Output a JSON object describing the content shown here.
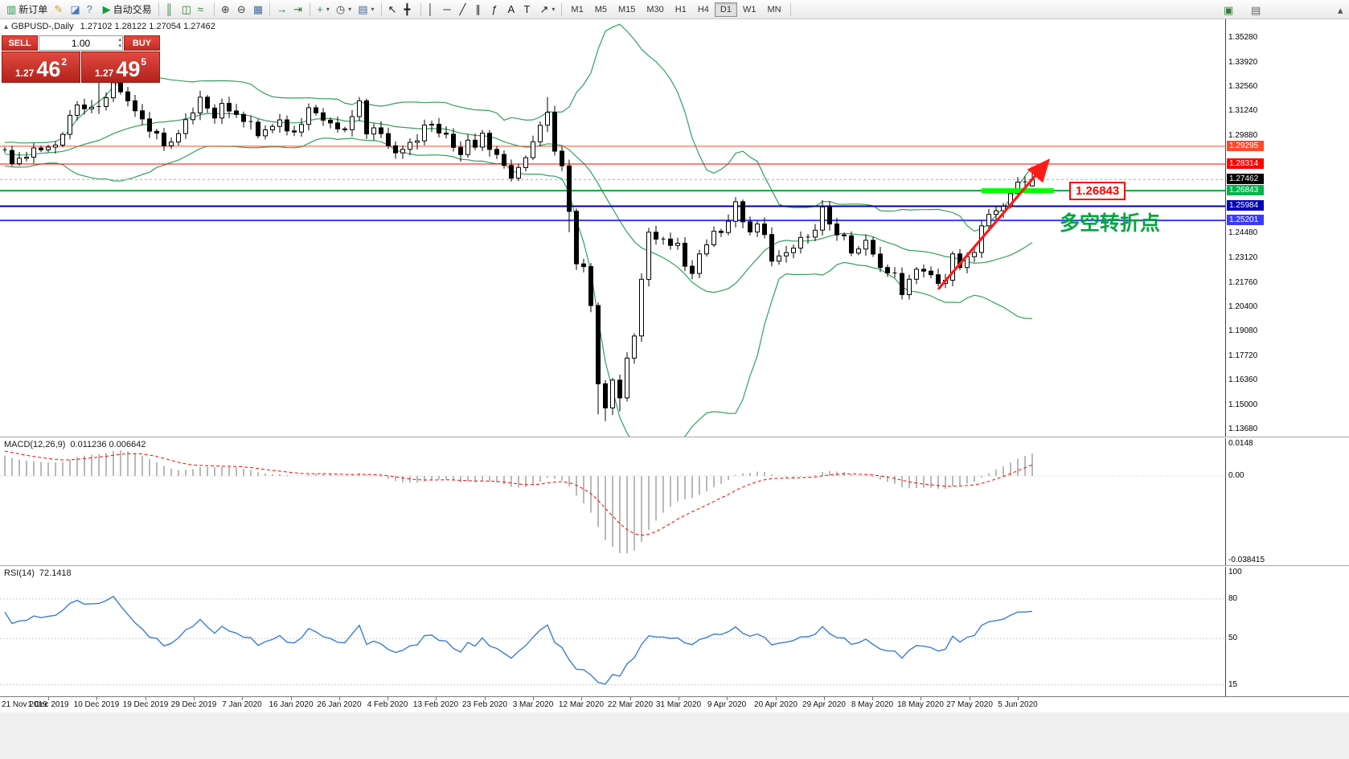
{
  "toolbar": {
    "groups": [
      {
        "name": "standard",
        "items": [
          {
            "name": "new-order-button",
            "icon": "new-order-icon",
            "glyph": "▥",
            "color": "#1d9f4e",
            "label": "新订单"
          },
          {
            "name": "metaeditor-button",
            "icon": "metaeditor-icon",
            "glyph": "✎",
            "color": "#d79b17"
          },
          {
            "name": "profiles-button",
            "icon": "profiles-icon",
            "glyph": "◪",
            "color": "#4a7ab8"
          },
          {
            "name": "help-button",
            "icon": "help-icon",
            "glyph": "?",
            "color": "#4a7ab8"
          },
          {
            "name": "autotrading-button",
            "icon": "autotrading-icon",
            "glyph": "▶",
            "color": "#169c3a",
            "label": "自动交易"
          }
        ]
      },
      {
        "name": "chart-modes",
        "items": [
          {
            "name": "bar-chart-button",
            "icon": "bar-chart-icon",
            "glyph": "║",
            "color": "#357a38"
          },
          {
            "name": "candlestick-chart-button",
            "icon": "candlestick-chart-icon",
            "glyph": "◫",
            "color": "#357a38"
          },
          {
            "name": "line-chart-button",
            "icon": "line-chart-icon",
            "glyph": "≈",
            "color": "#357a38"
          }
        ]
      },
      {
        "name": "zoom",
        "items": [
          {
            "name": "zoom-in-button",
            "icon": "zoom-in-icon",
            "glyph": "⊕",
            "color": "#444444"
          },
          {
            "name": "zoom-out-button",
            "icon": "zoom-out-icon",
            "glyph": "⊖",
            "color": "#444444"
          },
          {
            "name": "tile-windows-button",
            "icon": "tile-windows-icon",
            "glyph": "▦",
            "color": "#446a9a"
          }
        ]
      },
      {
        "name": "scroll",
        "items": [
          {
            "name": "auto-scroll-button",
            "icon": "auto-scroll-icon",
            "glyph": "→",
            "color": "#1d7a30"
          },
          {
            "name": "chart-shift-button",
            "icon": "chart-shift-icon",
            "glyph": "⇥",
            "color": "#1d7a30"
          }
        ]
      },
      {
        "name": "chart-tools",
        "items": [
          {
            "name": "indicators-button",
            "icon": "indicators-icon",
            "glyph": "+",
            "color": "#1d9f4e",
            "dropdown": true
          },
          {
            "name": "periods-button",
            "icon": "periods-icon",
            "glyph": "◷",
            "color": "#444444",
            "dropdown": true
          },
          {
            "name": "templates-button",
            "icon": "templates-icon",
            "glyph": "▤",
            "color": "#446a9a",
            "dropdown": true
          }
        ]
      },
      {
        "name": "cursor",
        "items": [
          {
            "name": "cursor-button",
            "icon": "cursor-icon",
            "glyph": "↖",
            "color": "#222222"
          },
          {
            "name": "crosshair-button",
            "icon": "crosshair-icon",
            "glyph": "╋",
            "color": "#222222"
          }
        ]
      },
      {
        "name": "objects",
        "items": [
          {
            "name": "vertical-line-button",
            "icon": "vertical-line-icon",
            "glyph": "│",
            "color": "#222222"
          },
          {
            "name": "horizontal-line-button",
            "icon": "horizontal-line-icon",
            "glyph": "─",
            "color": "#222222"
          },
          {
            "name": "trendline-button",
            "icon": "trendline-icon",
            "glyph": "╱",
            "color": "#222222"
          },
          {
            "name": "channel-button",
            "icon": "channel-icon",
            "glyph": "∥",
            "color": "#222222"
          },
          {
            "name": "fibonacci-button",
            "icon": "fibonacci-icon",
            "glyph": "ƒ",
            "color": "#222222"
          },
          {
            "name": "text-button",
            "icon": "text-icon",
            "glyph": "A",
            "color": "#222222"
          },
          {
            "name": "text-label-button",
            "icon": "text-label-icon",
            "glyph": "T",
            "color": "#222222"
          },
          {
            "name": "arrows-button",
            "icon": "arrows-icon",
            "glyph": "↗",
            "color": "#222222",
            "dropdown": true
          }
        ]
      }
    ],
    "timeframes": [
      "M1",
      "M5",
      "M15",
      "M30",
      "H1",
      "H4",
      "D1",
      "W1",
      "MN"
    ],
    "active_timeframe": "D1",
    "right_items": [
      {
        "name": "new-chart-window-button",
        "icon": "new-chart-window-icon",
        "glyph": "▣",
        "color": "#357a38"
      },
      {
        "name": "window-list-button",
        "icon": "window-list-icon",
        "glyph": "▤",
        "color": "#666666"
      },
      {
        "name": "toolbar-overflow-button",
        "icon": "chevron-up-icon",
        "glyph": "▴",
        "color": "#555555"
      }
    ]
  },
  "chart_header": {
    "symbol": "GBPUSD-,Daily",
    "ohlc": "1.27102 1.28122 1.27054 1.27462"
  },
  "trade_panel": {
    "sell_label": "SELL",
    "buy_label": "BUY",
    "volume": "1.00",
    "sell_price_small": "1.27",
    "sell_price_big": "46",
    "sell_price_sup": "2",
    "buy_price_small": "1.27",
    "buy_price_big": "49",
    "buy_price_sup": "5"
  },
  "price_axis": {
    "current_price": 1.27462,
    "ticks": [
      "1.35280",
      "1.33920",
      "1.32560",
      "1.31240",
      "1.29880",
      "1.24480",
      "1.23120",
      "1.21760",
      "1.20400",
      "1.19080",
      "1.17720",
      "1.16360",
      "1.15000",
      "1.13680"
    ],
    "tags": [
      {
        "text": "1.29295",
        "bg": "#ff4a2a"
      },
      {
        "text": "1.28314",
        "bg": "#ff0000"
      },
      {
        "text": "1.27462",
        "bg": "#000000"
      },
      {
        "text": "1.26843",
        "bg": "#00b44c"
      },
      {
        "text": "1.25984",
        "bg": "#0000b8"
      },
      {
        "text": "1.25201",
        "bg": "#3a3aff"
      }
    ]
  },
  "levels": [
    {
      "price": 1.29295,
      "color": "#ff4a2a",
      "width": 1
    },
    {
      "price": 1.28314,
      "color": "#ff0000",
      "width": 1
    },
    {
      "price": 1.26843,
      "color": "#00a63e",
      "width": 2
    },
    {
      "price": 1.25984,
      "color": "#0000b8",
      "width": 2
    },
    {
      "price": 1.25201,
      "color": "#3a3aff",
      "width": 2
    }
  ],
  "annotations": {
    "support_segment": {
      "price": 1.26843,
      "from_index": 135,
      "to_index": 145,
      "color": "#00ff00",
      "thickness": 6
    },
    "price_label": {
      "text": "1.26843",
      "color": "#ff0000"
    },
    "note": {
      "text": "多空转折点",
      "color": "#00a63e"
    },
    "trend_arrow": {
      "from_index": 129,
      "from_price": 1.214,
      "to_index": 144,
      "to_price": 1.284,
      "color": "#ff1a1a"
    }
  },
  "macd_panel": {
    "title": "MACD(12,26,9)",
    "values": "0.011236 0.006642",
    "axis": [
      "0.0148",
      "0.00",
      "-0.038415"
    ],
    "axis_values": [
      0.0148,
      0,
      -0.038415
    ]
  },
  "rsi_panel": {
    "title": "RSI(14)",
    "value": "72.1418",
    "axis": [
      {
        "label": "100",
        "v": 100
      },
      {
        "label": "80",
        "v": 80
      },
      {
        "label": "50",
        "v": 50
      },
      {
        "label": "15",
        "v": 15
      }
    ],
    "level_lines": [
      80,
      50,
      15
    ]
  },
  "chart_data": {
    "type": "candlestick",
    "symbol": "GBPUSD",
    "timeframe": "Daily",
    "last_ohlc": {
      "open": 1.27102,
      "high": 1.28122,
      "low": 1.27054,
      "close": 1.27462
    },
    "ylim": [
      1.134,
      1.3568
    ],
    "x_labels": [
      "21 Nov 2019",
      "1 Dec 2019",
      "10 Dec 2019",
      "19 Dec 2019",
      "29 Dec 2019",
      "7 Jan 2020",
      "16 Jan 2020",
      "26 Jan 2020",
      "4 Feb 2020",
      "13 Feb 2020",
      "23 Feb 2020",
      "3 Mar 2020",
      "12 Mar 2020",
      "22 Mar 2020",
      "31 Mar 2020",
      "9 Apr 2020",
      "20 Apr 2020",
      "29 Apr 2020",
      "8 May 2020",
      "18 May 2020",
      "27 May 2020",
      "5 Jun 2020"
    ],
    "pre_closes": [
      1.2205,
      1.228,
      1.241,
      1.246,
      1.253,
      1.266,
      1.2595,
      1.2665,
      1.2755,
      1.284,
      1.283,
      1.287,
      1.292,
      1.286,
      1.2825,
      1.2835,
      1.2843,
      1.288,
      1.291,
      1.288,
      1.285,
      1.288,
      1.292,
      1.293,
      1.285,
      1.289,
      1.293,
      1.29,
      1.292,
      1.291
    ],
    "closes": [
      1.2906,
      1.2833,
      1.2863,
      1.2869,
      1.292,
      1.291,
      1.2925,
      1.2936,
      1.2995,
      1.31,
      1.3157,
      1.3136,
      1.3145,
      1.3149,
      1.3197,
      1.328,
      1.323,
      1.318,
      1.3125,
      1.308,
      1.3012,
      1.3002,
      1.2932,
      1.2953,
      1.2999,
      1.3076,
      1.3113,
      1.32,
      1.314,
      1.3085,
      1.3166,
      1.3124,
      1.3105,
      1.3066,
      1.3062,
      1.2987,
      1.302,
      1.3039,
      1.3075,
      1.3014,
      1.3008,
      1.305,
      1.3142,
      1.3114,
      1.3073,
      1.3058,
      1.3025,
      1.302,
      1.3093,
      1.318,
      1.2997,
      1.3031,
      1.2999,
      1.2932,
      1.2893,
      1.2912,
      1.2951,
      1.2959,
      1.3046,
      1.3051,
      1.3002,
      1.2996,
      1.2923,
      1.2883,
      1.2963,
      1.2924,
      1.3001,
      1.2912,
      1.2884,
      1.2823,
      1.2753,
      1.2812,
      1.2866,
      1.2954,
      1.3045,
      1.3116,
      1.2902,
      1.2821,
      1.257,
      1.228,
      1.2265,
      1.205,
      1.1618,
      1.1485,
      1.1638,
      1.154,
      1.176,
      1.1882,
      1.2195,
      1.2455,
      1.2417,
      1.2417,
      1.2382,
      1.2394,
      1.2267,
      1.2227,
      1.2335,
      1.2385,
      1.246,
      1.2453,
      1.2515,
      1.2623,
      1.2512,
      1.2456,
      1.25,
      1.2442,
      1.2295,
      1.2324,
      1.2342,
      1.2367,
      1.2426,
      1.2428,
      1.2466,
      1.2594,
      1.25,
      1.244,
      1.2435,
      1.234,
      1.2362,
      1.241,
      1.2334,
      1.226,
      1.223,
      1.2227,
      1.211,
      1.2195,
      1.225,
      1.224,
      1.222,
      1.2172,
      1.219,
      1.2335,
      1.226,
      1.232,
      1.2343,
      1.249,
      1.2553,
      1.2573,
      1.2598,
      1.2668,
      1.2732,
      1.2733,
      1.2746
    ],
    "overrides": {
      "13": {
        "h": 1.329
      },
      "15": {
        "h": 1.333
      },
      "75": {
        "h": 1.32
      },
      "78": {
        "l": 1.2455
      },
      "82": {
        "l": 1.145
      },
      "83": {
        "l": 1.1412
      },
      "85": {
        "l": 1.1466
      },
      "142": {
        "o": 1.27102,
        "h": 1.28122,
        "l": 1.27054,
        "c": 1.27462
      }
    },
    "indicators": {
      "bollinger": {
        "period": 20,
        "deviation": 2,
        "color": "#33a05f"
      },
      "macd": {
        "fast": 12,
        "slow": 26,
        "signal": 9,
        "current": [
          0.011236,
          0.006642
        ],
        "histogram_color": "#b9b9b9",
        "signal_color": "#ff0000"
      },
      "rsi": {
        "period": 14,
        "current": 72.1418,
        "color": "#3b7dd8"
      }
    }
  }
}
